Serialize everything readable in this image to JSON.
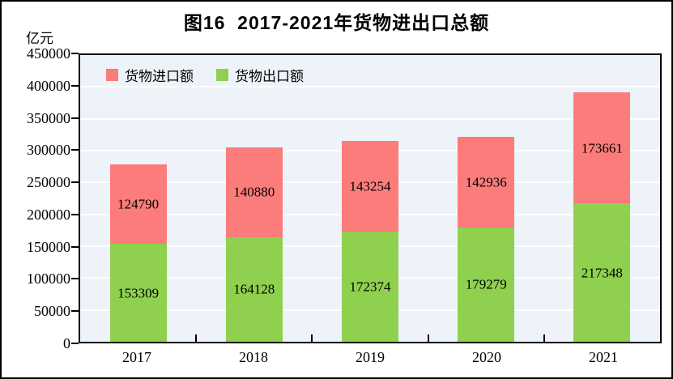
{
  "title": "图16  2017-2021年货物进出口总额",
  "y_axis_unit": "亿元",
  "legend": [
    {
      "label": "货物进口额",
      "color": "#FB7C7B"
    },
    {
      "label": "货物出口额",
      "color": "#8FD04E"
    }
  ],
  "colors": {
    "imports": "#FB7C7B",
    "exports": "#8FD04E",
    "plot_background": "#EDF3F8",
    "gridline": "#FFFFFF",
    "axis": "#000000"
  },
  "chart_data": {
    "type": "bar",
    "stacked": true,
    "title": "图16  2017-2021年货物进出口总额",
    "ylabel": "亿元",
    "categories": [
      "2017",
      "2018",
      "2019",
      "2020",
      "2021"
    ],
    "series": [
      {
        "name": "货物出口额",
        "color": "#8FD04E",
        "values": [
          153309,
          164128,
          172374,
          179279,
          217348
        ]
      },
      {
        "name": "货物进口额",
        "color": "#FB7C7B",
        "values": [
          124790,
          140880,
          143254,
          142936,
          173661
        ]
      }
    ],
    "ylim": [
      0,
      450000
    ],
    "ytick_step": 50000,
    "yticks": [
      0,
      50000,
      100000,
      150000,
      200000,
      250000,
      300000,
      350000,
      400000,
      450000
    ],
    "grid": true,
    "legend_position": "top-left-inside"
  }
}
